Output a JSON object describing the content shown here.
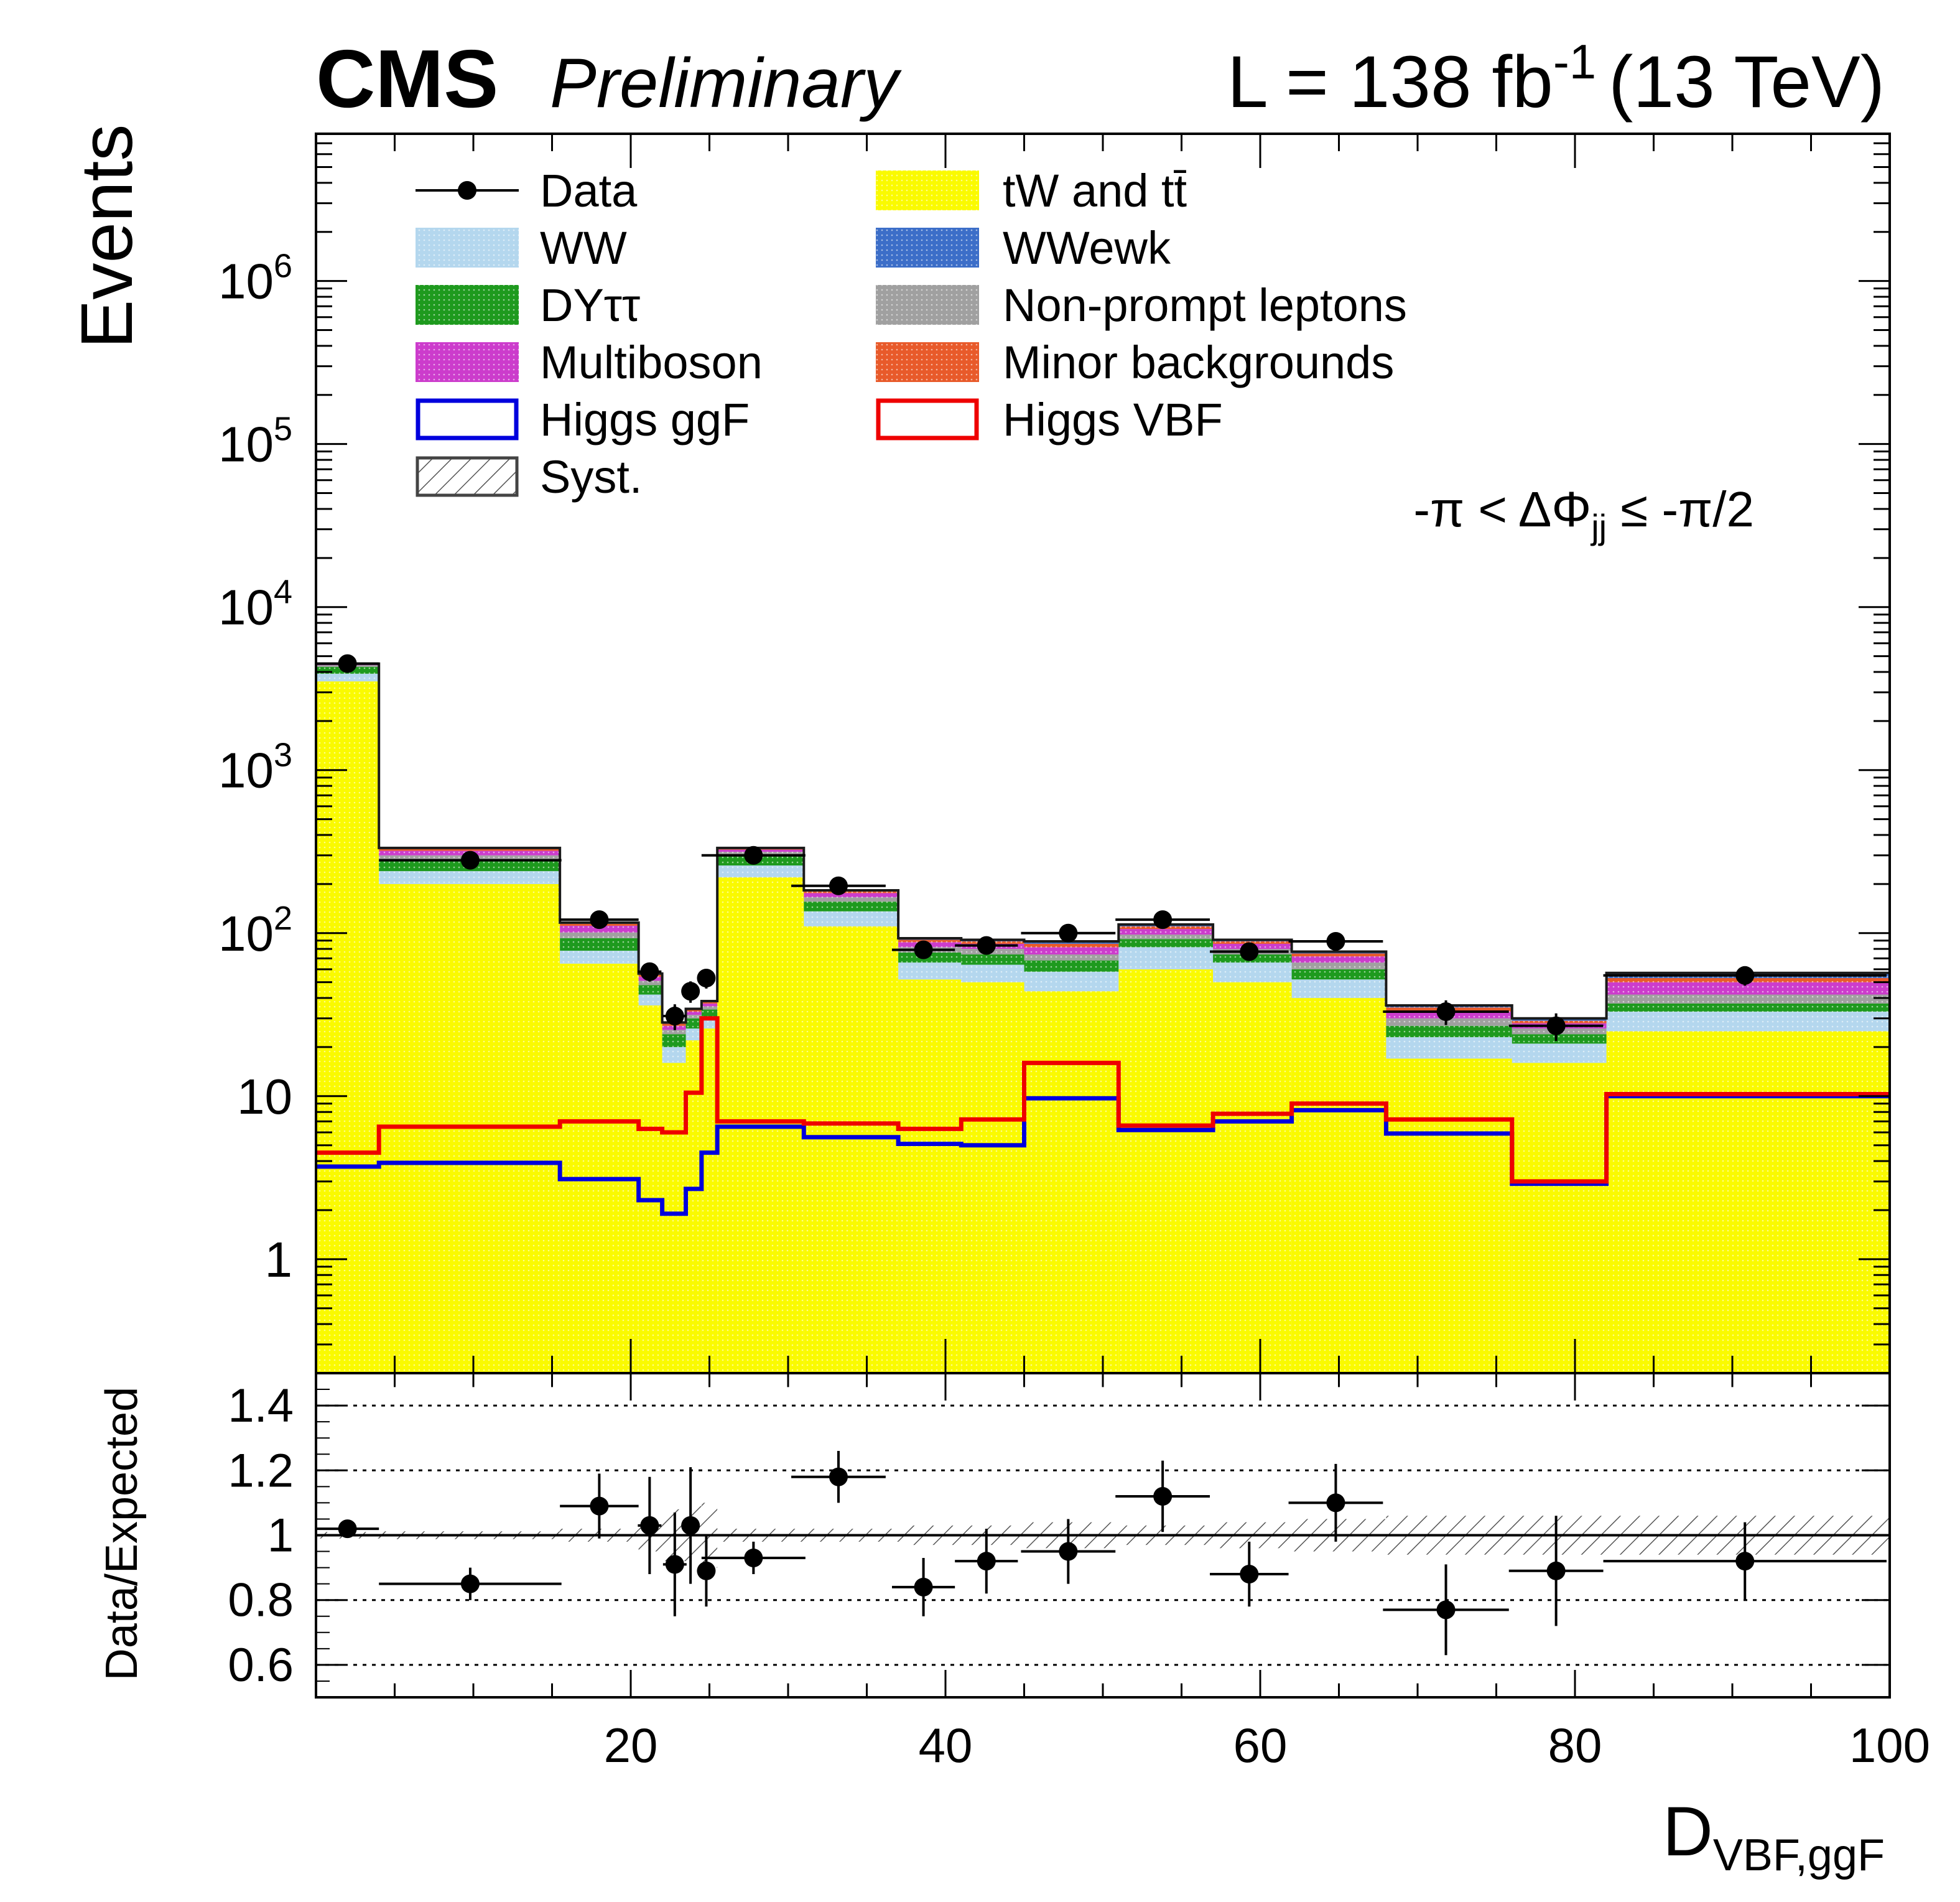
{
  "header": {
    "experiment": "CMS",
    "status": "Preliminary",
    "lumi_prefix": "L = 138 fb",
    "lumi_exp": "-1",
    "energy": "(13 TeV)"
  },
  "annotation": {
    "region_text": "-π < ΔΦ",
    "sub": "jj",
    "tail": " ≤ -π/2"
  },
  "colors": {
    "top": "#fafa00",
    "ww": "#b4d7ee",
    "wwewk": "#3c6ec8",
    "dy": "#1e9a1e",
    "nonprompt": "#a0a0a0",
    "multiboson": "#cc3ccc",
    "minor": "#e85a2a",
    "ggf": "#0000dd",
    "vbf": "#ee0000",
    "data": "#000000"
  },
  "chart_data": {
    "type": "bar",
    "title": "",
    "xlabel": "D",
    "xlabel_sub": "VBF,ggF",
    "ylabel": "Events",
    "ratio_ylabel": "Data/Expected",
    "xlim": [
      0,
      100
    ],
    "ylim": [
      0.2,
      8000000
    ],
    "ratio_ylim": [
      0.5,
      1.5
    ],
    "yscale": "log",
    "x_ticks": [
      "20",
      "40",
      "60",
      "80",
      "100"
    ],
    "y_ticks": [
      {
        "v": 1,
        "base": "1",
        "exp": ""
      },
      {
        "v": 10,
        "base": "10",
        "exp": ""
      },
      {
        "v": 100,
        "base": "10",
        "exp": "2"
      },
      {
        "v": 1000,
        "base": "10",
        "exp": "3"
      },
      {
        "v": 10000,
        "base": "10",
        "exp": "4"
      },
      {
        "v": 100000,
        "base": "10",
        "exp": "5"
      },
      {
        "v": 1000000,
        "base": "10",
        "exp": "6"
      }
    ],
    "ratio_ticks": [
      "0.6",
      "0.8",
      "1",
      "1.2",
      "1.4"
    ],
    "edges": [
      0,
      4,
      15.5,
      20.5,
      22,
      23.5,
      24.5,
      25.5,
      31,
      37,
      41,
      45,
      51,
      57,
      62,
      68,
      76,
      82,
      100
    ],
    "stack": [
      {
        "name": "tW and tt̄",
        "key": "top",
        "values": [
          3500,
          200,
          65,
          36,
          16,
          22,
          26,
          220,
          110,
          52,
          50,
          44,
          60,
          50,
          40,
          17,
          16,
          25
        ]
      },
      {
        "name": "WW",
        "key": "ww",
        "values": [
          400,
          40,
          13,
          6,
          4,
          4,
          4,
          40,
          26,
          14,
          14,
          14,
          22,
          16,
          12,
          6,
          5,
          8
        ]
      },
      {
        "name": "DYττ",
        "key": "dy",
        "values": [
          400,
          40,
          15,
          6,
          4,
          4,
          4,
          40,
          20,
          10,
          10,
          10,
          10,
          8,
          8,
          4,
          3,
          4
        ]
      },
      {
        "name": "Non-prompt leptons",
        "key": "nonprompt",
        "values": [
          100,
          20,
          8,
          3,
          1.5,
          1.5,
          1.5,
          15,
          10,
          6,
          6,
          6,
          6,
          6,
          6,
          3,
          2,
          5
        ]
      },
      {
        "name": "Multiboson",
        "key": "multiboson",
        "values": [
          50,
          20,
          10,
          3,
          1.5,
          1.5,
          1.5,
          10,
          10,
          6,
          6,
          8,
          8,
          6,
          6,
          3,
          2,
          8
        ]
      },
      {
        "name": "Minor backgrounds",
        "key": "minor",
        "values": [
          30,
          8,
          3,
          1.5,
          0.8,
          0.8,
          0.8,
          5,
          4,
          3,
          3,
          4,
          4,
          3,
          3,
          2,
          1,
          3
        ]
      },
      {
        "name": "WWewk",
        "key": "wwewk",
        "values": [
          20,
          5,
          2,
          1,
          0.5,
          0.5,
          0.5,
          3,
          3,
          2,
          2,
          3,
          3,
          2,
          2,
          1,
          1,
          4
        ]
      }
    ],
    "signals": [
      {
        "name": "Higgs ggF",
        "key": "ggf",
        "values": [
          3.7,
          3.9,
          3.1,
          2.3,
          1.9,
          2.7,
          4.5,
          6.5,
          5.6,
          5.1,
          5.0,
          9.7,
          6.2,
          7.0,
          8.2,
          5.9,
          2.9,
          10.0
        ]
      },
      {
        "name": "Higgs VBF",
        "key": "vbf",
        "values": [
          4.5,
          6.5,
          7.0,
          6.3,
          6.0,
          10.5,
          30,
          7.0,
          6.8,
          6.3,
          7.2,
          16.0,
          6.6,
          7.8,
          9.0,
          7.2,
          3.0,
          10.3
        ]
      }
    ],
    "data_points": [
      {
        "x": 2,
        "xerr": 2,
        "y": 4500,
        "yerr": 70,
        "ratio": 1.02,
        "rerr": 0.015
      },
      {
        "x": 9.8,
        "xerr": 5.8,
        "y": 280,
        "yerr": 17,
        "ratio": 0.85,
        "rerr": 0.05
      },
      {
        "x": 18,
        "xerr": 2.5,
        "y": 121,
        "yerr": 11,
        "ratio": 1.09,
        "rerr": 0.1
      },
      {
        "x": 21.2,
        "xerr": 0.75,
        "y": 58,
        "yerr": 7.6,
        "ratio": 1.03,
        "rerr": 0.15
      },
      {
        "x": 22.8,
        "xerr": 0.75,
        "y": 31,
        "yerr": 5.6,
        "ratio": 0.91,
        "rerr": 0.16
      },
      {
        "x": 23.8,
        "xerr": 0.5,
        "y": 44,
        "yerr": 6.6,
        "ratio": 1.03,
        "rerr": 0.18
      },
      {
        "x": 24.8,
        "xerr": 0.5,
        "y": 53,
        "yerr": 7.3,
        "ratio": 0.89,
        "rerr": 0.11
      },
      {
        "x": 27.8,
        "xerr": 3.3,
        "y": 300,
        "yerr": 17,
        "ratio": 0.93,
        "rerr": 0.05
      },
      {
        "x": 33.2,
        "xerr": 3,
        "y": 195,
        "yerr": 14,
        "ratio": 1.18,
        "rerr": 0.08
      },
      {
        "x": 38.6,
        "xerr": 2,
        "y": 79,
        "yerr": 9,
        "ratio": 0.84,
        "rerr": 0.09
      },
      {
        "x": 42.6,
        "xerr": 2,
        "y": 84,
        "yerr": 9,
        "ratio": 0.92,
        "rerr": 0.1
      },
      {
        "x": 47.8,
        "xerr": 3,
        "y": 100,
        "yerr": 10,
        "ratio": 0.95,
        "rerr": 0.1
      },
      {
        "x": 53.8,
        "xerr": 3,
        "y": 121,
        "yerr": 11,
        "ratio": 1.12,
        "rerr": 0.11
      },
      {
        "x": 59.3,
        "xerr": 2.5,
        "y": 77,
        "yerr": 9,
        "ratio": 0.88,
        "rerr": 0.1
      },
      {
        "x": 64.8,
        "xerr": 3,
        "y": 89,
        "yerr": 9.5,
        "ratio": 1.1,
        "rerr": 0.12
      },
      {
        "x": 71.8,
        "xerr": 4,
        "y": 33,
        "yerr": 5.7,
        "ratio": 0.77,
        "rerr": 0.14
      },
      {
        "x": 78.8,
        "xerr": 3,
        "y": 27,
        "yerr": 5.2,
        "ratio": 0.89,
        "rerr": 0.17
      },
      {
        "x": 90.8,
        "xerr": 9,
        "y": 55,
        "yerr": 7.4,
        "ratio": 0.92,
        "rerr": 0.12
      }
    ],
    "legend": [
      {
        "label": "Data",
        "key": "data",
        "kind": "marker"
      },
      {
        "label": "tW and tt̄",
        "key": "top",
        "kind": "fill"
      },
      {
        "label": "WW",
        "key": "ww",
        "kind": "fill"
      },
      {
        "label": "WWewk",
        "key": "wwewk",
        "kind": "fill"
      },
      {
        "label": "DYττ",
        "key": "dy",
        "kind": "fill"
      },
      {
        "label": "Non-prompt leptons",
        "key": "nonprompt",
        "kind": "fill"
      },
      {
        "label": "Multiboson",
        "key": "multiboson",
        "kind": "fill"
      },
      {
        "label": "Minor backgrounds",
        "key": "minor",
        "kind": "fill"
      },
      {
        "label": "Higgs ggF",
        "key": "ggf",
        "kind": "line"
      },
      {
        "label": "Higgs VBF",
        "key": "vbf",
        "kind": "line"
      },
      {
        "label": "Syst.",
        "key": "syst",
        "kind": "hatch"
      }
    ],
    "legend_position": "top-left, two columns"
  }
}
